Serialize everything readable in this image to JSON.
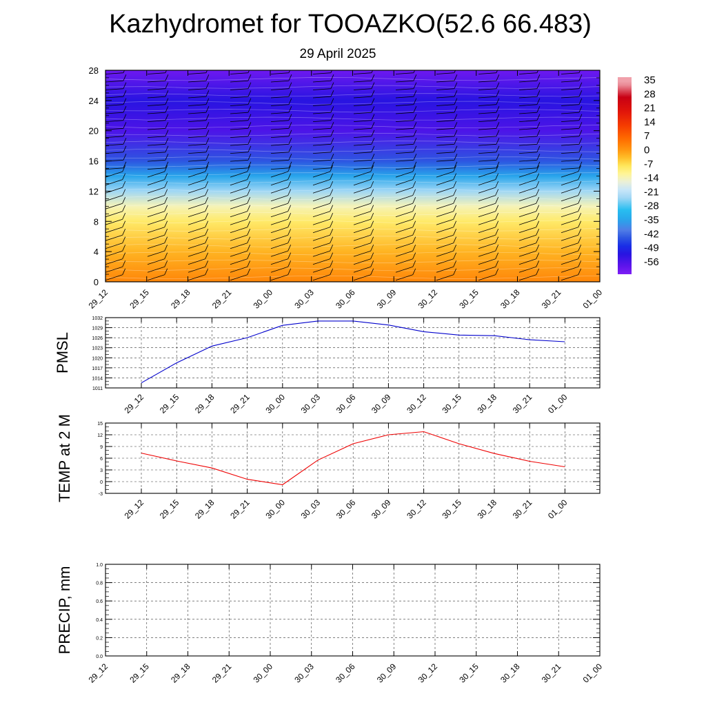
{
  "title": "Kazhydromet for TOOAZKO(52.6 66.483)",
  "subtitle": "29 April 2025",
  "chart_data": [
    {
      "type": "heatmap",
      "name": "cross-section",
      "x": [
        "29_12",
        "29_15",
        "29_18",
        "29_21",
        "30_00",
        "30_03",
        "30_06",
        "30_09",
        "30_12",
        "30_15",
        "30_18",
        "30_21",
        "01_00"
      ],
      "yticks": [
        0,
        4,
        8,
        12,
        16,
        20,
        24,
        28
      ],
      "ylim": [
        0,
        28
      ],
      "colorbar": {
        "labels": [
          "35",
          "28",
          "21",
          "14",
          "7",
          "0",
          "-7",
          "-14",
          "-21",
          "-28",
          "-35",
          "-42",
          "-49",
          "-56"
        ],
        "range": [
          -60,
          38
        ]
      },
      "wind_barbs": true,
      "approx_temperature_by_height": [
        {
          "y": 0,
          "t": 4
        },
        {
          "y": 4,
          "t": -1
        },
        {
          "y": 8,
          "t": -7
        },
        {
          "y": 10,
          "t": -12
        },
        {
          "y": 12,
          "t": -22
        },
        {
          "y": 14,
          "t": -33
        },
        {
          "y": 16,
          "t": -42
        },
        {
          "y": 20,
          "t": -54
        },
        {
          "y": 24,
          "t": -50
        },
        {
          "y": 28,
          "t": -58
        }
      ]
    },
    {
      "type": "line",
      "name": "pmsl",
      "ylabel": "PMSL",
      "x": [
        "29_12",
        "29_15",
        "29_18",
        "29_21",
        "30_00",
        "30_03",
        "30_06",
        "30_09",
        "30_12",
        "30_15",
        "30_18",
        "30_21",
        "01_00"
      ],
      "values": [
        1012.5,
        1018.5,
        1023.5,
        1026.0,
        1029.7,
        1031.0,
        1031.0,
        1029.8,
        1027.8,
        1026.8,
        1026.6,
        1025.4,
        1024.8
      ],
      "ylim": [
        1011,
        1032
      ],
      "yticks": [
        "1032",
        "1029",
        "1026",
        "1023",
        "1020",
        "1017",
        "1014",
        "1011"
      ],
      "color": "#0000cc"
    },
    {
      "type": "line",
      "name": "temp",
      "ylabel": "TEMP at 2 M",
      "x": [
        "29_12",
        "29_15",
        "29_18",
        "29_21",
        "30_00",
        "30_03",
        "30_06",
        "30_09",
        "30_12",
        "30_15",
        "30_18",
        "30_21",
        "01_00"
      ],
      "values": [
        7.3,
        5.3,
        3.5,
        0.6,
        -0.8,
        5.5,
        9.7,
        12.0,
        12.8,
        9.7,
        7.2,
        5.2,
        3.8
      ],
      "ylim": [
        -3,
        15
      ],
      "yticks": [
        "15",
        "12",
        "9",
        "6",
        "3",
        "0",
        "-3"
      ],
      "color": "#ee0000"
    },
    {
      "type": "line",
      "name": "precip",
      "ylabel": "PRECIP, mm",
      "x": [
        "29_12",
        "29_15",
        "29_18",
        "29_21",
        "30_00",
        "30_03",
        "30_06",
        "30_09",
        "30_12",
        "30_15",
        "30_18",
        "30_21",
        "01_00"
      ],
      "values": [
        0,
        0,
        0,
        0,
        0,
        0,
        0,
        0,
        0,
        0,
        0,
        0,
        0
      ],
      "ylim": [
        0,
        1
      ],
      "yticks": [
        "1.0",
        "0.8",
        "0.6",
        "0.4",
        "0.2",
        "0.0"
      ],
      "color": "#007700"
    }
  ]
}
